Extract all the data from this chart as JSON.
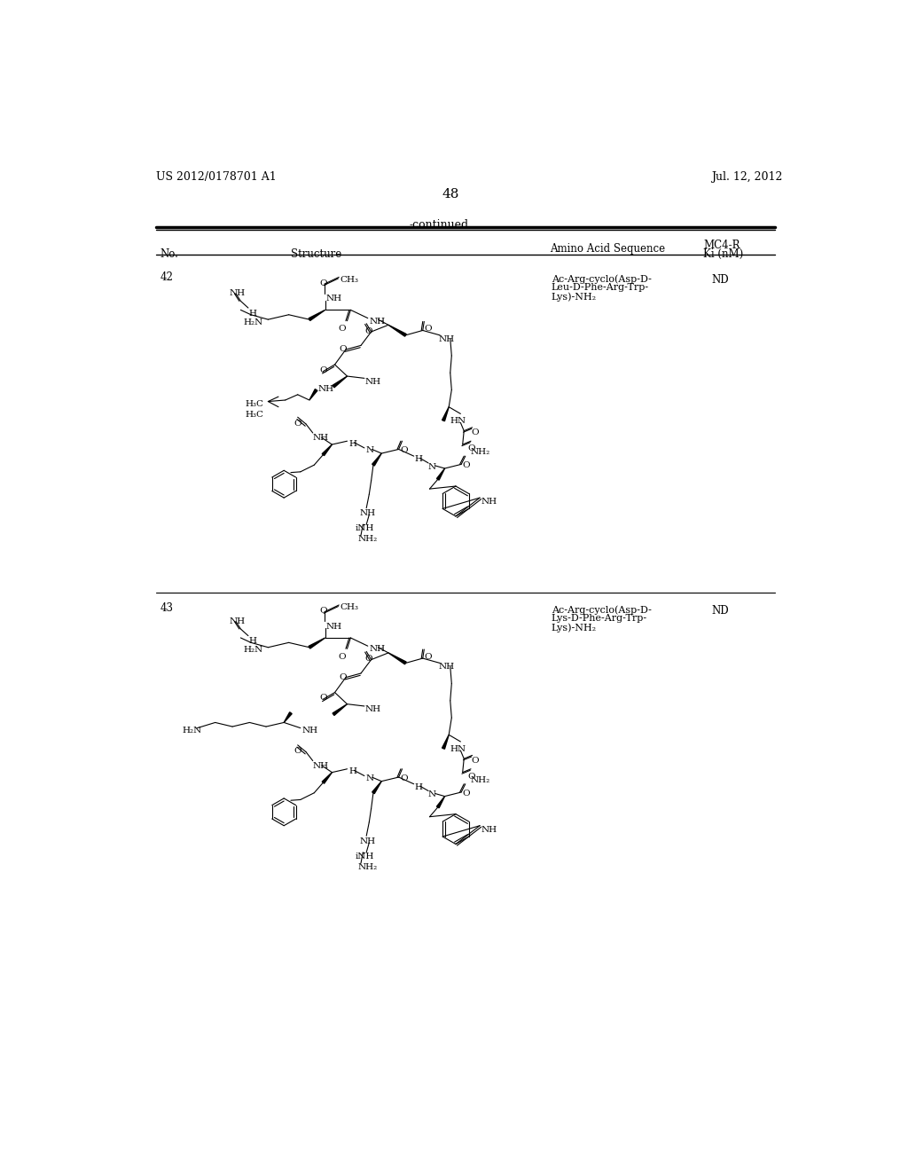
{
  "page_header_left": "US 2012/0178701 A1",
  "page_header_right": "Jul. 12, 2012",
  "page_number": "48",
  "continued_label": "-continued",
  "row42_no": "42",
  "row42_seq1": "Ac-Arg-cyclo(Asp-D-",
  "row42_seq2": "Leu-D-Phe-Arg-Trp-",
  "row42_seq3": "Lys)-NH₂",
  "row42_ki": "ND",
  "row43_no": "43",
  "row43_seq1": "Ac-Arg-cyclo(Asp-D-",
  "row43_seq2": "Lys-D-Phe-Arg-Trp-",
  "row43_seq3": "Lys)-NH₂",
  "row43_ki": "ND",
  "bg_color": "#ffffff"
}
